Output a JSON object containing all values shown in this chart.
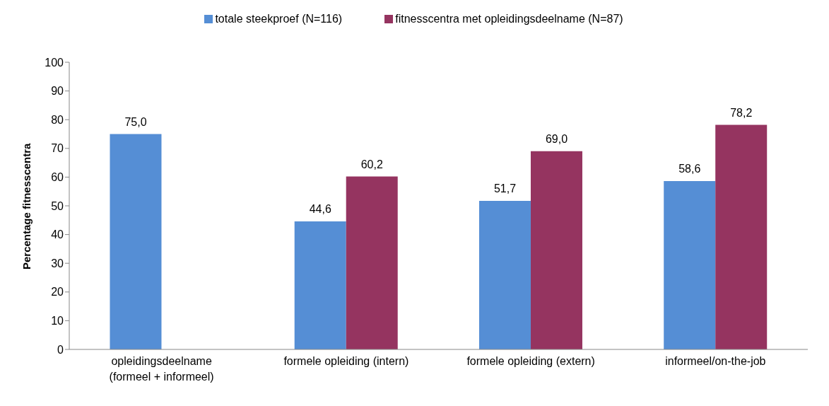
{
  "chart_data": {
    "type": "bar",
    "ylabel": "Percentage fitnesscentra",
    "categories": [
      "opleidingsdeelname (formeel + informeel)",
      "formele opleiding (intern)",
      "formele opleiding (extern)",
      "informeel/on-the-job"
    ],
    "series": [
      {
        "name": "totale steekproef (N=116)",
        "color": "#558ed5",
        "values": [
          75.0,
          44.6,
          51.7,
          58.6
        ],
        "value_labels": [
          "75,0",
          "44,6",
          "51,7",
          "58,6"
        ]
      },
      {
        "name": "fitnesscentra met opleidingsdeelname (N=87)",
        "color": "#953460",
        "values": [
          null,
          60.2,
          69.0,
          78.2
        ],
        "value_labels": [
          null,
          "60,2",
          "69,0",
          "78,2"
        ]
      }
    ],
    "ylim": [
      0,
      100
    ],
    "yticks": [
      0,
      10,
      20,
      30,
      40,
      50,
      60,
      70,
      80,
      90,
      100
    ],
    "grid": false,
    "legend": "top"
  }
}
